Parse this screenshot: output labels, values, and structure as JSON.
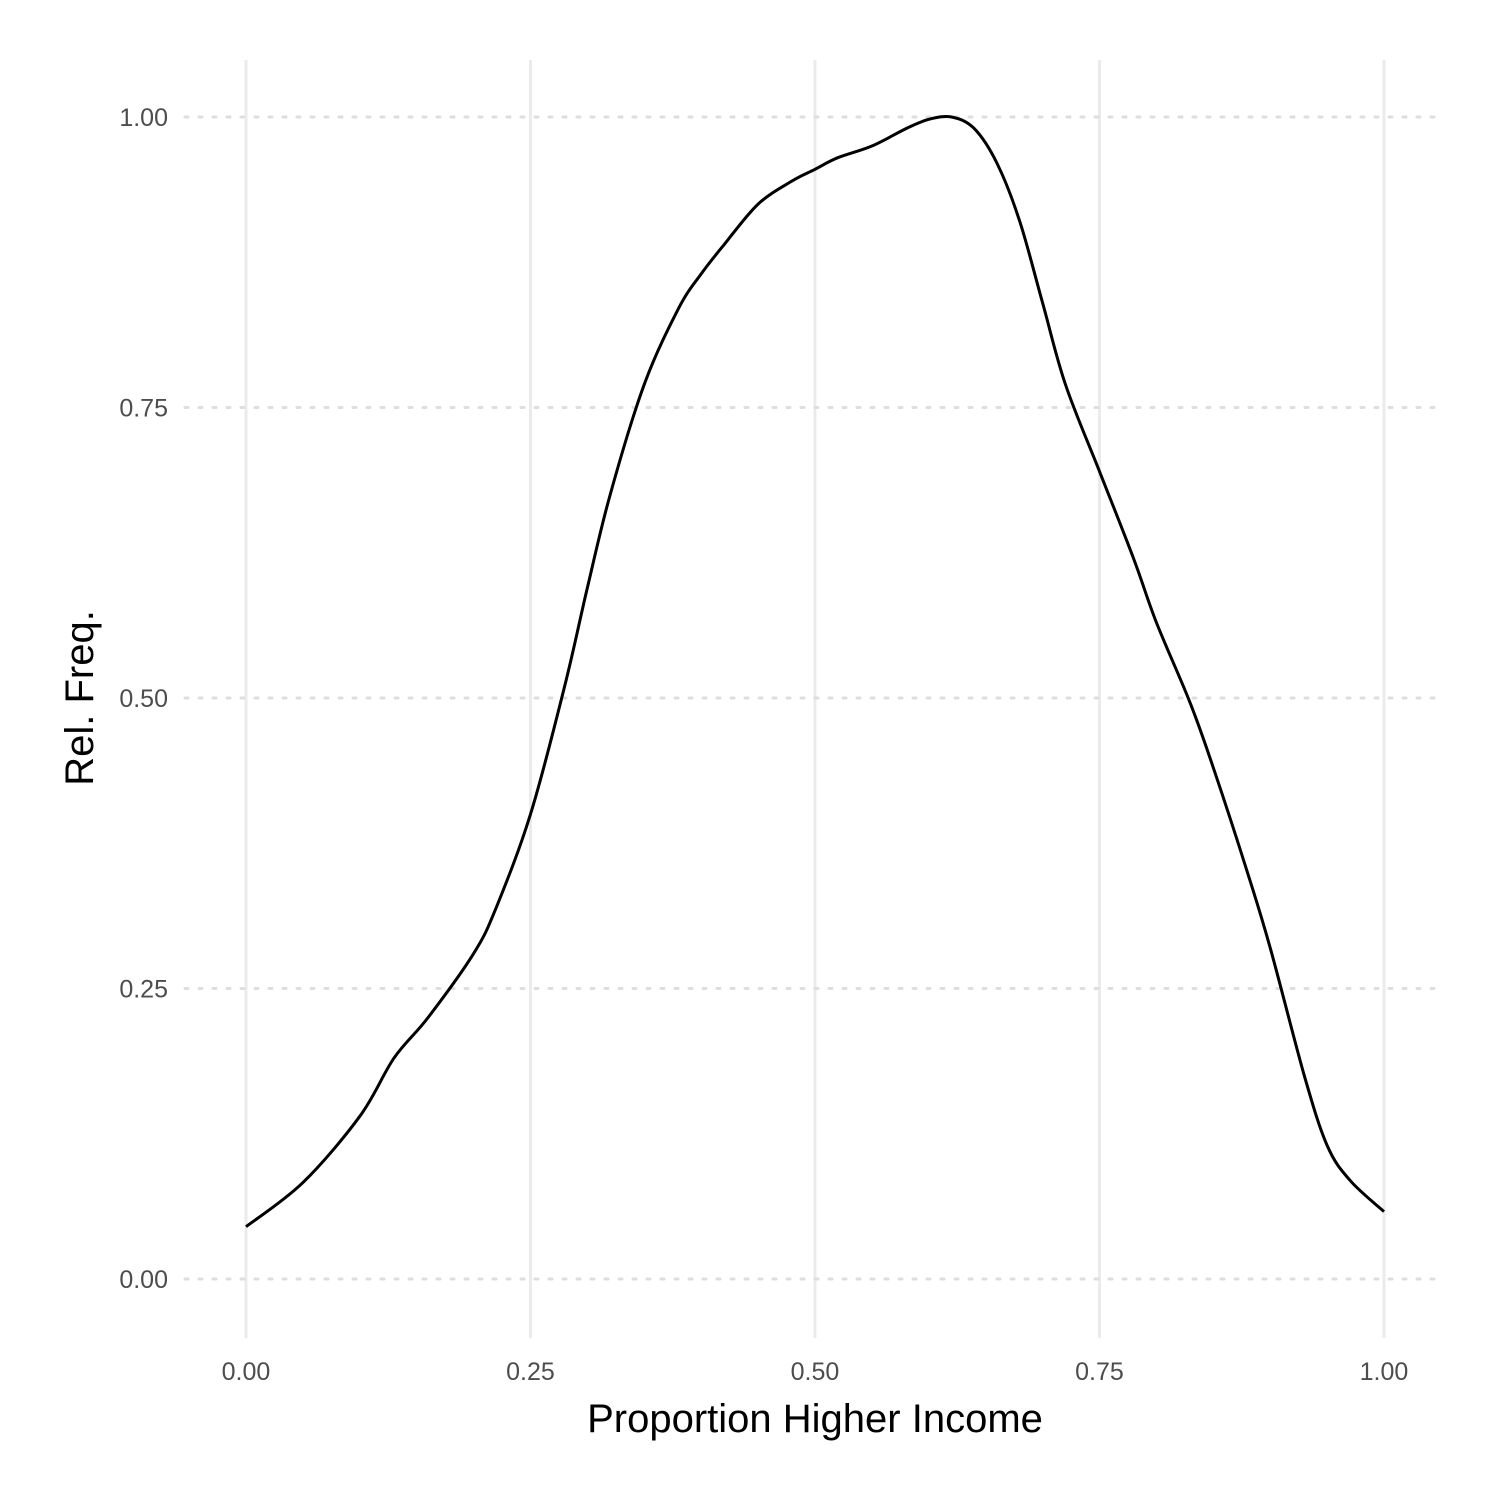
{
  "chart_data": {
    "type": "line",
    "title": "",
    "xlabel": "Proportion Higher Income",
    "ylabel": "Rel. Freq.",
    "xlim": [
      0,
      1
    ],
    "ylim": [
      0,
      1
    ],
    "x_ticks": [
      "0.00",
      "0.25",
      "0.50",
      "0.75",
      "1.00"
    ],
    "y_ticks": [
      "0.00",
      "0.25",
      "0.50",
      "0.75",
      "1.00"
    ],
    "grid": true,
    "legend": "none",
    "series": [
      {
        "color": "#000000",
        "x": [
          0.0,
          0.05,
          0.1,
          0.13,
          0.16,
          0.2,
          0.22,
          0.25,
          0.28,
          0.3,
          0.32,
          0.35,
          0.38,
          0.4,
          0.42,
          0.45,
          0.48,
          0.5,
          0.52,
          0.55,
          0.58,
          0.6,
          0.62,
          0.64,
          0.66,
          0.68,
          0.7,
          0.72,
          0.75,
          0.78,
          0.8,
          0.83,
          0.85,
          0.88,
          0.9,
          0.93,
          0.95,
          0.97,
          1.0
        ],
        "values": [
          0.045,
          0.083,
          0.14,
          0.19,
          0.225,
          0.28,
          0.32,
          0.4,
          0.51,
          0.595,
          0.675,
          0.77,
          0.835,
          0.865,
          0.89,
          0.925,
          0.945,
          0.955,
          0.965,
          0.975,
          0.99,
          0.998,
          1.0,
          0.99,
          0.96,
          0.91,
          0.84,
          0.77,
          0.695,
          0.62,
          0.565,
          0.495,
          0.44,
          0.35,
          0.285,
          0.175,
          0.115,
          0.085,
          0.058
        ]
      }
    ]
  }
}
